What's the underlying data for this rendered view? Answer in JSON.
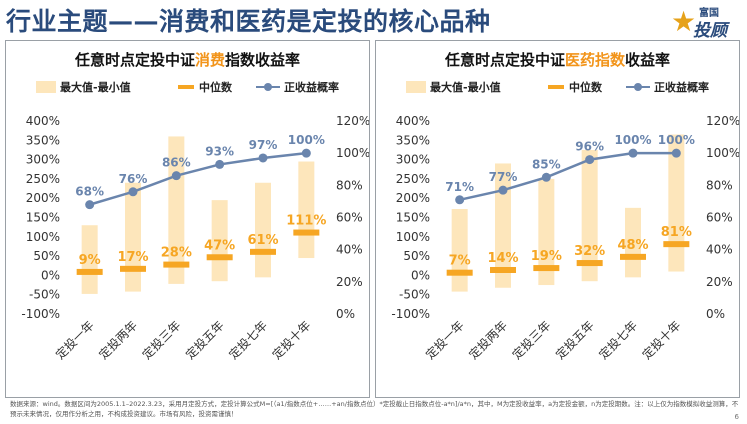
{
  "header": {
    "title": "行业主题——消费和医药是定投的核心品种",
    "logo_line1": "富国",
    "logo_line2": "投顾"
  },
  "legend": {
    "range": "最大值-最小值",
    "median": "中位数",
    "prob": "正收益概率"
  },
  "colors": {
    "range": "#fde6bb",
    "median": "#f6a623",
    "line": "#6a85ad",
    "highlight": "#f2941a",
    "title": "#2a4b7c"
  },
  "footer": {
    "text": "数据来源：wind。数据区间为2005.1.1–2022.3.23，采用月定投方式，定投计算公式M=[（a1/指数点位+……+an/指数点位）*定投截止日指数点位-a*n]/a*n，其中，M为定投收益率，a为定投金额，n为定投期数。注：以上仅为指数模拟收益测算，不预示未来情况，仅用作分析之用，不构成投资建议。市场有风险，投资需谨慎！",
    "page": "6"
  },
  "chart_data": [
    {
      "type": "bar",
      "title_pre": "任意时点定投中证",
      "title_hl": "消费",
      "title_post": "指数收益率",
      "categories": [
        "定投一年",
        "定投两年",
        "定投三年",
        "定投五年",
        "定投七年",
        "定投十年"
      ],
      "left_ticks": [
        "400%",
        "350%",
        "300%",
        "250%",
        "200%",
        "150%",
        "100%",
        "50%",
        "0%",
        "-50%",
        "-100%"
      ],
      "right_ticks": [
        "120%",
        "100%",
        "80%",
        "60%",
        "40%",
        "20%",
        "0%"
      ],
      "ylim_left": [
        -100,
        400
      ],
      "ylim_right": [
        0,
        120
      ],
      "range_max": [
        130,
        240,
        360,
        195,
        240,
        295
      ],
      "range_min": [
        -48,
        -42,
        -22,
        -15,
        -5,
        45
      ],
      "median": [
        9,
        17,
        28,
        47,
        61,
        111
      ],
      "median_labels": [
        "9%",
        "17%",
        "28%",
        "47%",
        "61%",
        "111%"
      ],
      "prob": [
        68,
        76,
        86,
        93,
        97,
        100
      ],
      "prob_labels": [
        "68%",
        "76%",
        "86%",
        "93%",
        "97%",
        "100%"
      ]
    },
    {
      "type": "bar",
      "title_pre": "任意时点定投中证",
      "title_hl": "医药指数",
      "title_post": "收益率",
      "categories": [
        "定投一年",
        "定投两年",
        "定投三年",
        "定投五年",
        "定投七年",
        "定投十年"
      ],
      "left_ticks": [
        "400%",
        "350%",
        "300%",
        "250%",
        "200%",
        "150%",
        "100%",
        "50%",
        "0%",
        "-50%",
        "-100%"
      ],
      "right_ticks": [
        "120%",
        "100%",
        "80%",
        "60%",
        "40%",
        "20%",
        "0%"
      ],
      "ylim_left": [
        -100,
        400
      ],
      "ylim_right": [
        0,
        120
      ],
      "range_max": [
        172,
        290,
        250,
        325,
        175,
        365
      ],
      "range_min": [
        -42,
        -32,
        -25,
        -15,
        -5,
        10
      ],
      "median": [
        7,
        14,
        19,
        32,
        48,
        81
      ],
      "median_labels": [
        "7%",
        "14%",
        "19%",
        "32%",
        "48%",
        "81%"
      ],
      "prob": [
        71,
        77,
        85,
        96,
        100,
        100
      ],
      "prob_labels": [
        "71%",
        "77%",
        "85%",
        "96%",
        "100%",
        "100%"
      ]
    }
  ]
}
